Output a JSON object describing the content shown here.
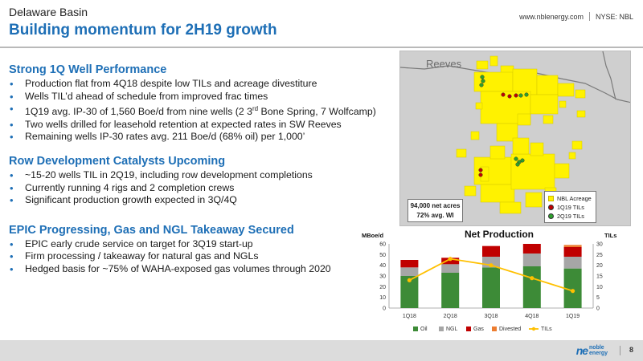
{
  "header": {
    "supertitle": "Delaware Basin",
    "title": "Building momentum for 2H19 growth",
    "website": "www.nblenergy.com",
    "ticker": "NYSE: NBL"
  },
  "sections": [
    {
      "title": "Strong 1Q Well Performance",
      "bullets": [
        "Production flat from 4Q18 despite low TILs and acreage divestiture",
        "Wells TIL’d ahead of schedule from improved frac times",
        "1Q19 avg. IP-30 of 1,560 Boe/d from nine wells (2 3rd Bone Spring, 7 Wolfcamp)",
        "Two wells drilled for leasehold retention at expected rates in SW Reeves",
        "Remaining wells IP-30 rates avg. 211 Boe/d (68% oil) per 1,000’"
      ]
    },
    {
      "title": "Row Development Catalysts Upcoming",
      "bullets": [
        "~15-20 wells TIL in 2Q19, including row development completions",
        "Currently running 4 rigs and 2 completion crews",
        "Significant production growth expected in 3Q/4Q"
      ]
    },
    {
      "title": "EPIC Progressing, Gas and NGL Takeaway Secured",
      "bullets": [
        "EPIC early crude service on target for 3Q19 start-up",
        "Firm processing / takeaway for natural gas and NGLs",
        "Hedged basis for ~75% of WAHA-exposed gas volumes through 2020"
      ]
    }
  ],
  "map": {
    "label": "Reeves",
    "acres_line1": "94,000 net acres",
    "acres_line2": "72% avg. WI",
    "legend": [
      {
        "label": "NBL Acreage",
        "color": "#fff200",
        "icon": "square-swatch"
      },
      {
        "label": "1Q19 TILs",
        "color": "#c00000",
        "icon": "dot"
      },
      {
        "label": "2Q19 TILs",
        "color": "#2ca02c",
        "icon": "dot"
      }
    ],
    "colors": {
      "acreage": "#fff200",
      "background": "#cfcfcf"
    }
  },
  "chart_data": {
    "type": "bar",
    "title": "Net Production",
    "ylabel": "MBoe/d",
    "y2label": "TILs",
    "categories": [
      "1Q18",
      "2Q18",
      "3Q18",
      "4Q18",
      "1Q19"
    ],
    "ylim": [
      0,
      60
    ],
    "yticks": [
      0,
      10,
      20,
      30,
      40,
      50,
      60
    ],
    "y2lim": [
      0,
      30
    ],
    "y2ticks": [
      0,
      5,
      10,
      15,
      20,
      25,
      30
    ],
    "series": [
      {
        "name": "Oil",
        "color": "#3d8b37",
        "values": [
          30,
          33,
          38,
          39,
          37
        ]
      },
      {
        "name": "NGL",
        "color": "#a6a6a6",
        "values": [
          8,
          8,
          10,
          12,
          11
        ]
      },
      {
        "name": "Gas",
        "color": "#c00000",
        "values": [
          7,
          6,
          10,
          9,
          9
        ]
      },
      {
        "name": "Divested",
        "color": "#ed7d31",
        "values": [
          0,
          0,
          0,
          0,
          2
        ]
      }
    ],
    "line_series": {
      "name": "TILs",
      "color": "#ffc000",
      "axis": "y2",
      "values": [
        13,
        23,
        20,
        14,
        8
      ]
    },
    "legend_position": "bottom",
    "grid": false
  },
  "footer": {
    "logo_mark": "ne",
    "logo_line1": "noble",
    "logo_line2": "energy",
    "page_number": "8"
  }
}
